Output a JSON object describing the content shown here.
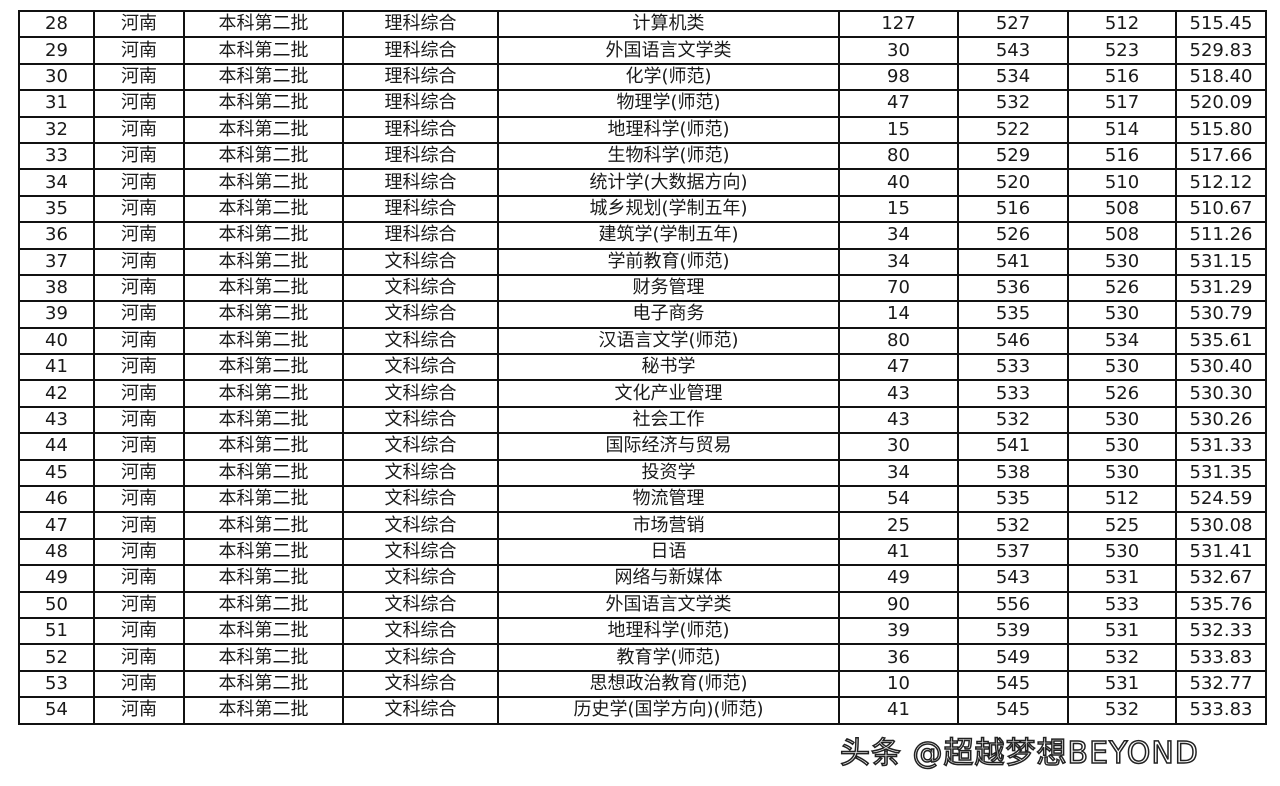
{
  "rows": [
    [
      "28",
      "河南",
      "本科第二批",
      "理科综合",
      "计算机类",
      "127",
      "527",
      "512",
      "515.45"
    ],
    [
      "29",
      "河南",
      "本科第二批",
      "理科综合",
      "外国语言文学类",
      "30",
      "543",
      "523",
      "529.83"
    ],
    [
      "30",
      "河南",
      "本科第二批",
      "理科综合",
      "化学(师范)",
      "98",
      "534",
      "516",
      "518.40"
    ],
    [
      "31",
      "河南",
      "本科第二批",
      "理科综合",
      "物理学(师范)",
      "47",
      "532",
      "517",
      "520.09"
    ],
    [
      "32",
      "河南",
      "本科第二批",
      "理科综合",
      "地理科学(师范)",
      "15",
      "522",
      "514",
      "515.80"
    ],
    [
      "33",
      "河南",
      "本科第二批",
      "理科综合",
      "生物科学(师范)",
      "80",
      "529",
      "516",
      "517.66"
    ],
    [
      "34",
      "河南",
      "本科第二批",
      "理科综合",
      "统计学(大数据方向)",
      "40",
      "520",
      "510",
      "512.12"
    ],
    [
      "35",
      "河南",
      "本科第二批",
      "理科综合",
      "城乡规划(学制五年)",
      "15",
      "516",
      "508",
      "510.67"
    ],
    [
      "36",
      "河南",
      "本科第二批",
      "理科综合",
      "建筑学(学制五年)",
      "34",
      "526",
      "508",
      "511.26"
    ],
    [
      "37",
      "河南",
      "本科第二批",
      "文科综合",
      "学前教育(师范)",
      "34",
      "541",
      "530",
      "531.15"
    ],
    [
      "38",
      "河南",
      "本科第二批",
      "文科综合",
      "财务管理",
      "70",
      "536",
      "526",
      "531.29"
    ],
    [
      "39",
      "河南",
      "本科第二批",
      "文科综合",
      "电子商务",
      "14",
      "535",
      "530",
      "530.79"
    ],
    [
      "40",
      "河南",
      "本科第二批",
      "文科综合",
      "汉语言文学(师范)",
      "80",
      "546",
      "534",
      "535.61"
    ],
    [
      "41",
      "河南",
      "本科第二批",
      "文科综合",
      "秘书学",
      "47",
      "533",
      "530",
      "530.40"
    ],
    [
      "42",
      "河南",
      "本科第二批",
      "文科综合",
      "文化产业管理",
      "43",
      "533",
      "526",
      "530.30"
    ],
    [
      "43",
      "河南",
      "本科第二批",
      "文科综合",
      "社会工作",
      "43",
      "532",
      "530",
      "530.26"
    ],
    [
      "44",
      "河南",
      "本科第二批",
      "文科综合",
      "国际经济与贸易",
      "30",
      "541",
      "530",
      "531.33"
    ],
    [
      "45",
      "河南",
      "本科第二批",
      "文科综合",
      "投资学",
      "34",
      "538",
      "530",
      "531.35"
    ],
    [
      "46",
      "河南",
      "本科第二批",
      "文科综合",
      "物流管理",
      "54",
      "535",
      "512",
      "524.59"
    ],
    [
      "47",
      "河南",
      "本科第二批",
      "文科综合",
      "市场营销",
      "25",
      "532",
      "525",
      "530.08"
    ],
    [
      "48",
      "河南",
      "本科第二批",
      "文科综合",
      "日语",
      "41",
      "537",
      "530",
      "531.41"
    ],
    [
      "49",
      "河南",
      "本科第二批",
      "文科综合",
      "网络与新媒体",
      "49",
      "543",
      "531",
      "532.67"
    ],
    [
      "50",
      "河南",
      "本科第二批",
      "文科综合",
      "外国语言文学类",
      "90",
      "556",
      "533",
      "535.76"
    ],
    [
      "51",
      "河南",
      "本科第二批",
      "文科综合",
      "地理科学(师范)",
      "39",
      "539",
      "531",
      "532.33"
    ],
    [
      "52",
      "河南",
      "本科第二批",
      "文科综合",
      "教育学(师范)",
      "36",
      "549",
      "532",
      "533.83"
    ],
    [
      "53",
      "河南",
      "本科第二批",
      "文科综合",
      "思想政治教育(师范)",
      "10",
      "545",
      "531",
      "532.77"
    ],
    [
      "54",
      "河南",
      "本科第二批",
      "文科综合",
      "历史学(国学方向)(师范)",
      "41",
      "545",
      "532",
      "533.83"
    ]
  ],
  "watermark": "头条 @超越梦想BEYOND"
}
